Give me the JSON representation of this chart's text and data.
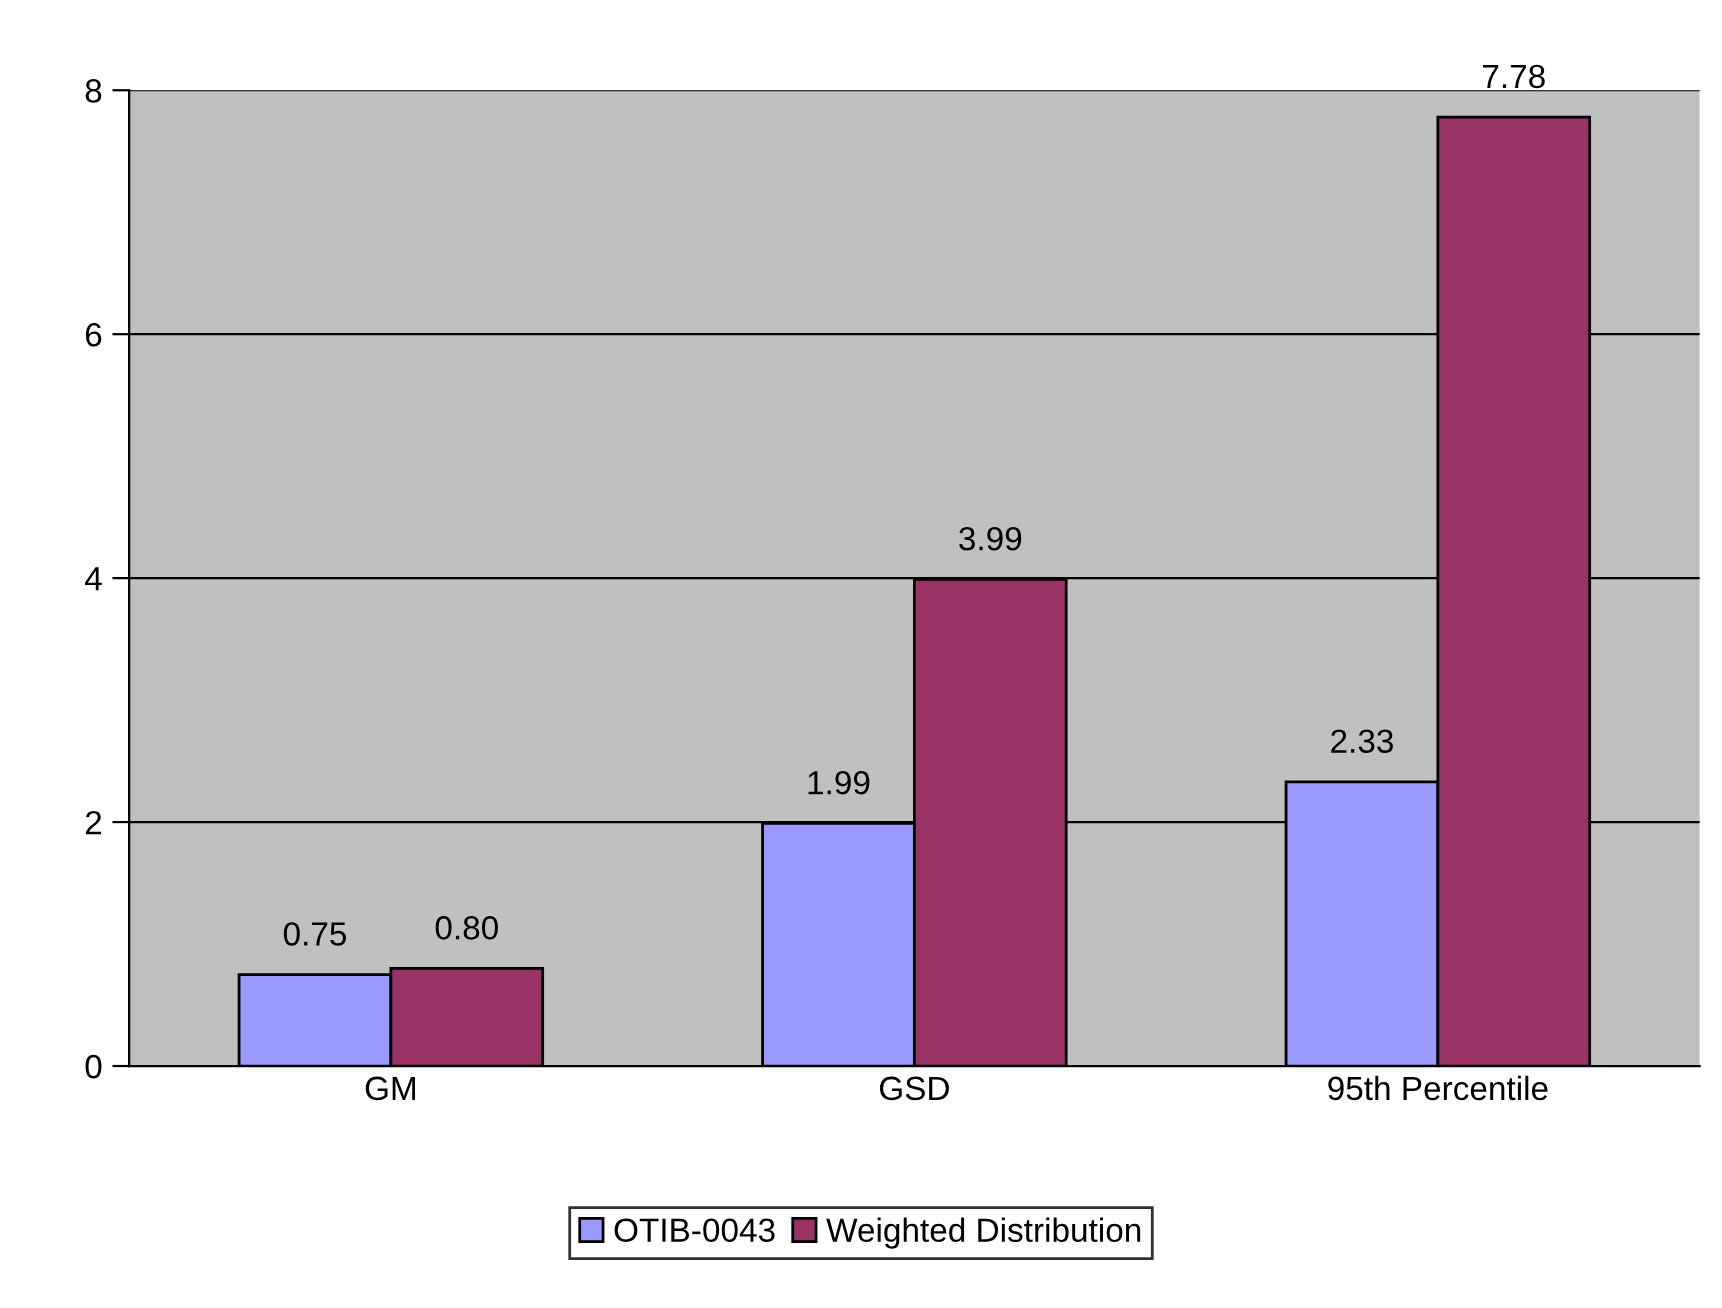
{
  "chart_data": {
    "type": "bar",
    "categories": [
      "GM",
      "GSD",
      "95th Percentile"
    ],
    "series": [
      {
        "name": "OTIB-0043",
        "color": "#9999ff",
        "values": [
          0.75,
          1.99,
          2.33
        ],
        "value_labels": [
          "0.75",
          "1.99",
          "2.33"
        ]
      },
      {
        "name": "Weighted Distribution",
        "color": "#993366",
        "values": [
          0.8,
          3.99,
          7.78
        ],
        "value_labels": [
          "0.80",
          "3.99",
          "7.78"
        ]
      }
    ],
    "ylim": [
      0,
      8
    ],
    "yticks": [
      0,
      2,
      4,
      6,
      8
    ],
    "grid": "y",
    "legend": "bottom"
  }
}
